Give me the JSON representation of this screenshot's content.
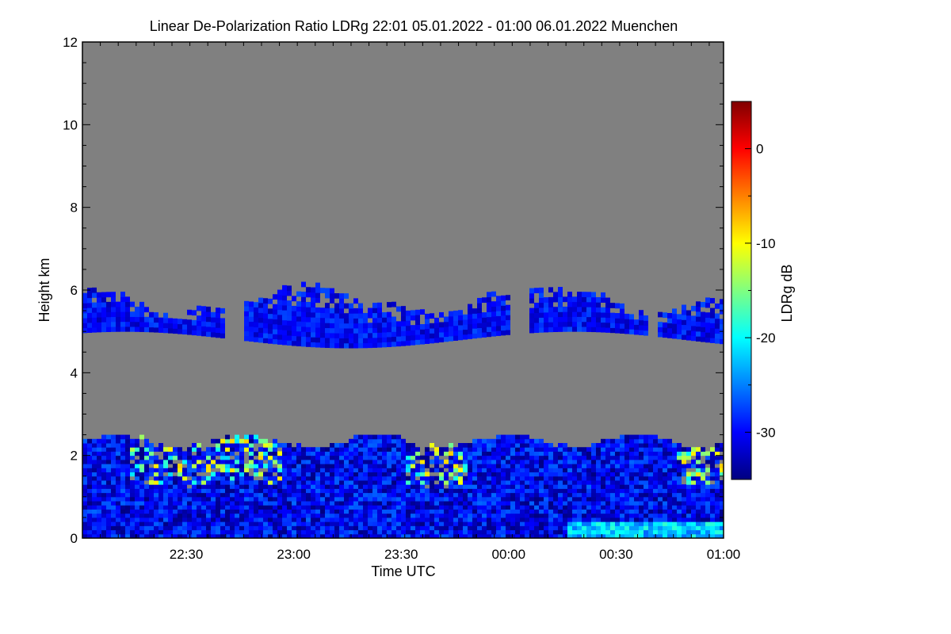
{
  "chart_data": {
    "type": "heatmap",
    "title": "Linear De-Polarization Ratio LDRg   22:01 05.01.2022 - 01:00 06.01.2022 Muenchen",
    "xlabel": "Time UTC",
    "ylabel": "Height km",
    "x_ticks": [
      {
        "label": "22:30",
        "minutes": 29
      },
      {
        "label": "23:00",
        "minutes": 59
      },
      {
        "label": "23:30",
        "minutes": 89
      },
      {
        "label": "00:00",
        "minutes": 119
      },
      {
        "label": "00:30",
        "minutes": 149
      },
      {
        "label": "01:00",
        "minutes": 179
      }
    ],
    "x_range_minutes": [
      0,
      179
    ],
    "x_start": "22:01",
    "x_end": "01:00",
    "y_range_km": [
      0,
      12
    ],
    "y_ticks": [
      0,
      2,
      4,
      6,
      8,
      10,
      12
    ],
    "background_color": "#808080",
    "colorbar": {
      "label": "LDRg dB",
      "range_db": [
        -35,
        5
      ],
      "ticks": [
        0,
        -10,
        -20,
        -30
      ],
      "colors": [
        "#000080",
        "#0000ff",
        "#0080ff",
        "#00ffff",
        "#80ff80",
        "#ffff00",
        "#ff8000",
        "#ff0000",
        "#800000"
      ]
    },
    "layers": [
      {
        "name": "mid-level cloud",
        "base_km": [
          4.6,
          5.0
        ],
        "top_km": [
          5.4,
          6.1
        ],
        "ldr_db": [
          -33,
          -27
        ]
      },
      {
        "name": "boundary layer",
        "base_km": [
          0.0,
          0.0
        ],
        "top_km": [
          2.0,
          2.5
        ],
        "ldr_db": [
          -34,
          -10
        ]
      }
    ]
  }
}
